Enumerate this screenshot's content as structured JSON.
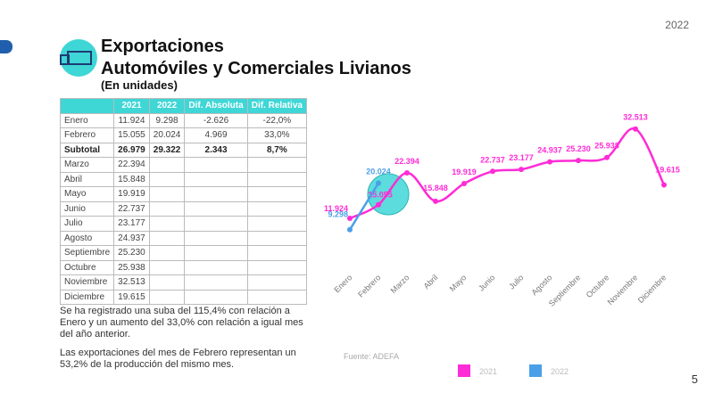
{
  "header": {
    "title_line1": "Exportaciones",
    "title_line2": "Automóviles y Comerciales Livianos",
    "subtitle": "(En unidades)",
    "year": "2022"
  },
  "page_number": "5",
  "table": {
    "header": [
      "2021",
      "2022",
      "Dif. Absoluta",
      "Dif. Relativa"
    ],
    "rows": [
      [
        "Enero",
        "11.924",
        "9.298",
        "-2.626",
        "-22,0%"
      ],
      [
        "Febrero",
        "15.055",
        "20.024",
        "4.969",
        "33,0%"
      ],
      [
        "Subtotal",
        "26.979",
        "29.322",
        "2.343",
        "8,7%"
      ],
      [
        "Marzo",
        "22.394"
      ],
      [
        "Abril",
        "15.848"
      ],
      [
        "Mayo",
        "19.919"
      ],
      [
        "Junio",
        "22.737"
      ],
      [
        "Julio",
        "23.177"
      ],
      [
        "Agosto",
        "24.937"
      ],
      [
        "Septiembre",
        "25.230"
      ],
      [
        "Octubre",
        "25.938"
      ],
      [
        "Noviembre",
        "32.513"
      ],
      [
        "Diciembre",
        "19.615"
      ]
    ]
  },
  "notes": [
    "Se ha registrado una suba del 115,4% con relación a Enero y un aumento del 33,0% con relación a igual mes del año anterior.",
    "Las exportaciones del mes de Febrero representan un 53,2% de la producción del mismo mes."
  ],
  "chart_data": {
    "type": "line",
    "source": "Fuente: ADEFA",
    "categories": [
      "Enero",
      "Febrero",
      "Marzo",
      "Abril",
      "Mayo",
      "Junio",
      "Julio",
      "Agosto",
      "Septiembre",
      "Octubre",
      "Noviembre",
      "Diciembre"
    ],
    "ylim": [
      0,
      35000
    ],
    "series": [
      {
        "name": "2021",
        "color": "#ff2bd6",
        "values": [
          11924,
          15055,
          22394,
          15848,
          19919,
          22737,
          23177,
          24937,
          25230,
          25938,
          32513,
          19615
        ],
        "value_labels": [
          "11.924",
          "15.055",
          "22.394",
          "15.848",
          "19.919",
          "22.737",
          "23.177",
          "24.937",
          "25.230",
          "25.938",
          "32.513",
          "19.615"
        ]
      },
      {
        "name": "2022",
        "color": "#4a9fe8",
        "values": [
          9298,
          20024,
          null,
          null,
          null,
          null,
          null,
          null,
          null,
          null,
          null,
          null
        ],
        "value_labels": [
          "9.298",
          "20.024",
          null,
          null,
          null,
          null,
          null,
          null,
          null,
          null,
          null,
          null
        ]
      }
    ]
  }
}
